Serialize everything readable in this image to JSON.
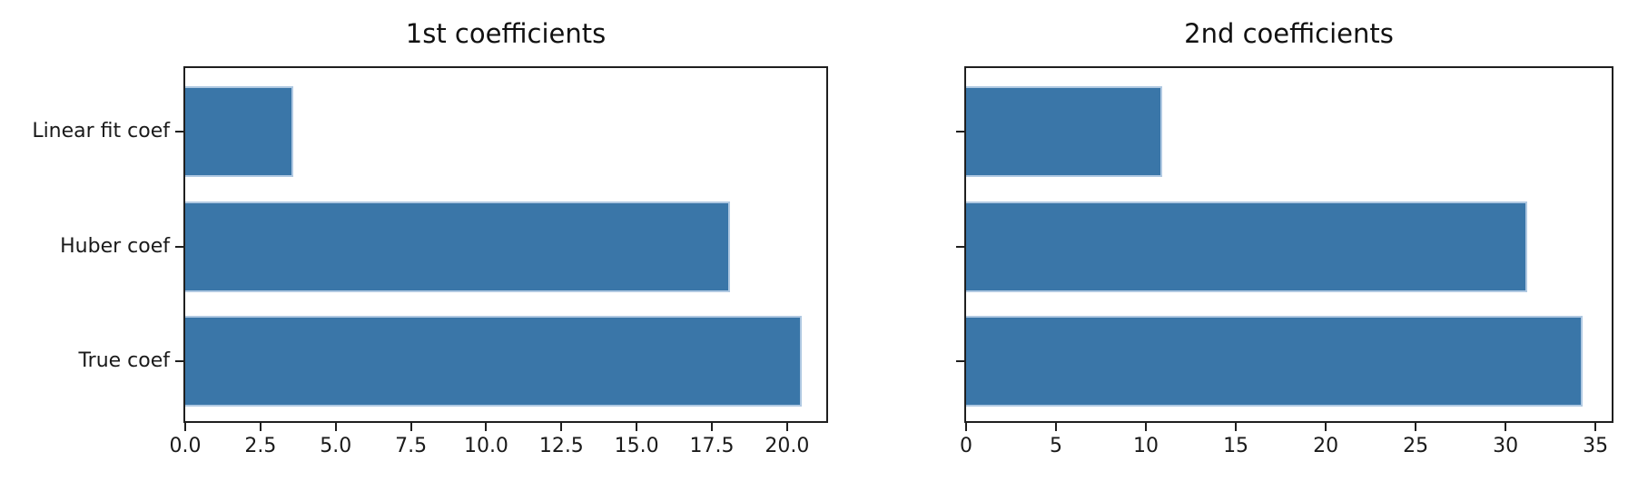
{
  "figure": {
    "background": "#ffffff"
  },
  "colors": {
    "bar": "#3a76a8",
    "bar_edge": "#b0c9e2",
    "spine": "#1f1f1f",
    "text": "#1a1a1a"
  },
  "chart_data": [
    {
      "type": "bar",
      "orientation": "horizontal",
      "title": "1st coefficients",
      "categories": [
        "Linear fit coef",
        "Huber coef",
        "True coef"
      ],
      "values": [
        3.6,
        18.1,
        20.5
      ],
      "xlabel": "",
      "ylabel": "",
      "xlim": [
        0,
        21.3
      ],
      "xtick_values": [
        0,
        2.5,
        5,
        7.5,
        10,
        12.5,
        15,
        17.5,
        20
      ],
      "xtick_labels": [
        "0.0",
        "2.5",
        "5.0",
        "7.5",
        "10.0",
        "12.5",
        "15.0",
        "17.5",
        "20.0"
      ],
      "show_category_labels": true,
      "grid": false,
      "legend_position": "none"
    },
    {
      "type": "bar",
      "orientation": "horizontal",
      "title": "2nd coefficients",
      "categories": [
        "Linear fit coef",
        "Huber coef",
        "True coef"
      ],
      "values": [
        10.9,
        31.2,
        34.3
      ],
      "xlabel": "",
      "ylabel": "",
      "xlim": [
        0,
        35.9
      ],
      "xtick_values": [
        0,
        5,
        10,
        15,
        20,
        25,
        30,
        35
      ],
      "xtick_labels": [
        "0",
        "5",
        "10",
        "15",
        "20",
        "25",
        "30",
        "35"
      ],
      "show_category_labels": false,
      "grid": false,
      "legend_position": "none"
    }
  ]
}
